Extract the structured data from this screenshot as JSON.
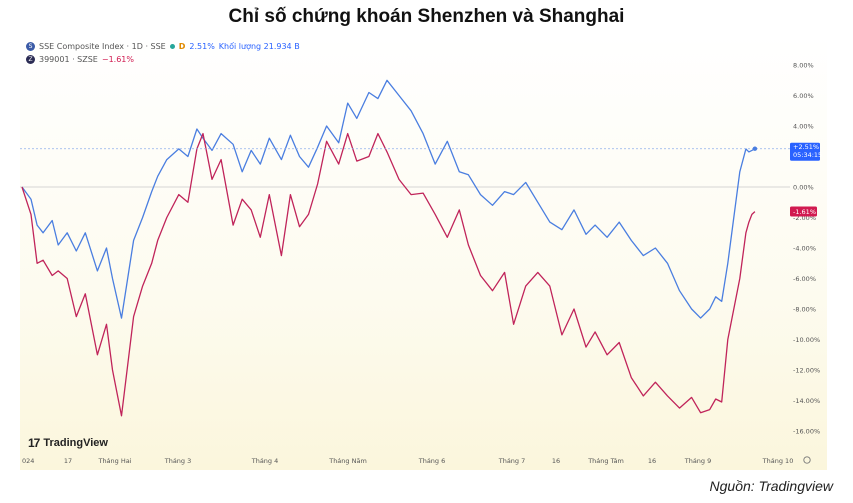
{
  "title": "Chỉ số chứng khoán Shenzhen và Shanghai",
  "source": "Nguồn: Tradingview",
  "watermark": "TradingView",
  "legend": {
    "row1": {
      "symbol": "SSE Composite Index · 1D · SSE",
      "badge": "D",
      "change": "2.51%",
      "volume": "Khối lượng 21.934 B"
    },
    "row2": {
      "symbol": "399001 · SZSE",
      "change": "−1.61%"
    }
  },
  "colors": {
    "sse": "#4a7ee0",
    "szse": "#c0245a",
    "sse_tag": "#2962ff",
    "szse_tag": "#d11a50"
  },
  "chart_data": {
    "type": "line",
    "x_tick_labels": [
      "024",
      "17",
      "Tháng Hai",
      "Tháng 3",
      "Tháng 4",
      "Tháng Năm",
      "Tháng 6",
      "Tháng 7",
      "16",
      "Tháng Tám",
      "16",
      "Tháng 9",
      "Tháng 10"
    ],
    "y_tick_labels": [
      "8.00%",
      "6.00%",
      "4.00%",
      "2.00%",
      "0.00%",
      "-2.00%",
      "-4.00%",
      "-6.00%",
      "-8.00%",
      "-10.00%",
      "-12.00%",
      "-14.00%",
      "-16.00%"
    ],
    "ylim": [
      -16,
      8
    ],
    "xlim": [
      0,
      248
    ],
    "last_value_tags": {
      "sse": [
        "+2.51%",
        "05:34:15"
      ],
      "szse": [
        "-1.61%"
      ]
    },
    "series": [
      {
        "key": "sse",
        "x": [
          0,
          3,
          5,
          7,
          10,
          12,
          15,
          18,
          21,
          25,
          28,
          30,
          33,
          37,
          40,
          43,
          45,
          48,
          52,
          55,
          58,
          60,
          63,
          66,
          70,
          73,
          76,
          79,
          82,
          86,
          89,
          92,
          95,
          98,
          101,
          105,
          108,
          111,
          115,
          118,
          121,
          125,
          129,
          133,
          137,
          141,
          145,
          148,
          152,
          156,
          160,
          163,
          167,
          171,
          175,
          179,
          183,
          187,
          190,
          194,
          198,
          202,
          206,
          210,
          214,
          218,
          222,
          225,
          228,
          230,
          232,
          234,
          236,
          238,
          240,
          241,
          242,
          243
        ],
        "values": [
          0.0,
          -0.8,
          -2.5,
          -3.0,
          -2.2,
          -3.8,
          -3.0,
          -4.2,
          -3.0,
          -5.5,
          -4.0,
          -6.0,
          -8.6,
          -3.5,
          -2.0,
          -0.3,
          0.7,
          1.8,
          2.5,
          2.0,
          3.8,
          3.2,
          2.4,
          3.5,
          2.8,
          1.0,
          2.4,
          1.5,
          3.2,
          1.8,
          3.4,
          2.0,
          1.3,
          2.6,
          4.0,
          2.9,
          5.5,
          4.5,
          6.2,
          5.8,
          7.0,
          6.0,
          5.0,
          3.5,
          1.5,
          3.0,
          1.0,
          0.8,
          -0.5,
          -1.2,
          -0.3,
          -0.5,
          0.3,
          -1.0,
          -2.3,
          -2.8,
          -1.5,
          -3.1,
          -2.5,
          -3.3,
          -2.3,
          -3.5,
          -4.5,
          -4.0,
          -5.0,
          -6.8,
          -8.0,
          -8.6,
          -8.0,
          -7.2,
          -7.5,
          -5.0,
          -2.0,
          1.0,
          2.5,
          2.3,
          2.4,
          2.51
        ]
      },
      {
        "key": "szse",
        "x": [
          0,
          3,
          5,
          7,
          10,
          12,
          15,
          18,
          21,
          25,
          28,
          30,
          33,
          37,
          40,
          43,
          45,
          48,
          52,
          55,
          58,
          60,
          63,
          66,
          70,
          73,
          76,
          79,
          82,
          86,
          89,
          92,
          95,
          98,
          101,
          105,
          108,
          111,
          115,
          118,
          121,
          125,
          129,
          133,
          137,
          141,
          145,
          148,
          152,
          156,
          160,
          163,
          167,
          171,
          175,
          179,
          183,
          187,
          190,
          194,
          198,
          202,
          206,
          210,
          214,
          218,
          222,
          225,
          228,
          230,
          232,
          234,
          236,
          238,
          240,
          241,
          242,
          243
        ],
        "values": [
          0.0,
          -1.8,
          -5.0,
          -4.8,
          -5.8,
          -5.5,
          -6.0,
          -8.5,
          -7.0,
          -11.0,
          -9.0,
          -12.0,
          -15.0,
          -8.5,
          -6.5,
          -5.0,
          -3.5,
          -2.0,
          -0.5,
          -1.0,
          2.5,
          3.5,
          0.5,
          1.8,
          -2.5,
          -0.8,
          -1.5,
          -3.3,
          -0.5,
          -4.5,
          -0.5,
          -2.6,
          -1.8,
          0.2,
          3.0,
          1.5,
          3.5,
          1.7,
          2.0,
          3.5,
          2.3,
          0.5,
          -0.5,
          -0.4,
          -1.8,
          -3.3,
          -1.5,
          -3.8,
          -5.8,
          -6.8,
          -5.6,
          -9.0,
          -6.5,
          -5.6,
          -6.5,
          -9.7,
          -8.0,
          -10.5,
          -9.5,
          -11.0,
          -10.2,
          -12.5,
          -13.7,
          -12.8,
          -13.7,
          -14.5,
          -13.8,
          -14.8,
          -14.6,
          -13.9,
          -14.1,
          -10.0,
          -8.0,
          -6.0,
          -3.0,
          -2.3,
          -1.8,
          -1.61
        ]
      }
    ]
  }
}
